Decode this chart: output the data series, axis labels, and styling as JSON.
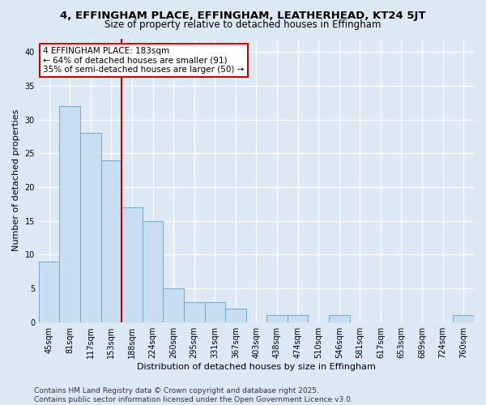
{
  "title": "4, EFFINGHAM PLACE, EFFINGHAM, LEATHERHEAD, KT24 5JT",
  "subtitle": "Size of property relative to detached houses in Effingham",
  "xlabel": "Distribution of detached houses by size in Effingham",
  "ylabel": "Number of detached properties",
  "categories": [
    "45sqm",
    "81sqm",
    "117sqm",
    "153sqm",
    "188sqm",
    "224sqm",
    "260sqm",
    "295sqm",
    "331sqm",
    "367sqm",
    "403sqm",
    "438sqm",
    "474sqm",
    "510sqm",
    "546sqm",
    "581sqm",
    "617sqm",
    "653sqm",
    "689sqm",
    "724sqm",
    "760sqm"
  ],
  "values": [
    9,
    32,
    28,
    24,
    17,
    15,
    5,
    3,
    3,
    2,
    0,
    1,
    1,
    0,
    1,
    0,
    0,
    0,
    0,
    0,
    1
  ],
  "bar_color": "#c9ddf0",
  "bar_edge_color": "#6aaad4",
  "vline_index": 3.5,
  "vline_color": "#cc0000",
  "annotation_text": "4 EFFINGHAM PLACE: 183sqm\n← 64% of detached houses are smaller (91)\n35% of semi-detached houses are larger (50) →",
  "annotation_box_facecolor": "#ffffff",
  "annotation_box_edgecolor": "#cc0000",
  "ylim": [
    0,
    42
  ],
  "yticks": [
    0,
    5,
    10,
    15,
    20,
    25,
    30,
    35,
    40
  ],
  "footer_text": "Contains HM Land Registry data © Crown copyright and database right 2025.\nContains public sector information licensed under the Open Government Licence v3.0.",
  "background_color": "#dde8f5",
  "plot_background_color": "#dde8f5",
  "grid_color": "#ffffff",
  "title_fontsize": 9.5,
  "subtitle_fontsize": 8.5,
  "axis_label_fontsize": 8,
  "tick_fontsize": 7,
  "annotation_fontsize": 7.5,
  "footer_fontsize": 6.5
}
